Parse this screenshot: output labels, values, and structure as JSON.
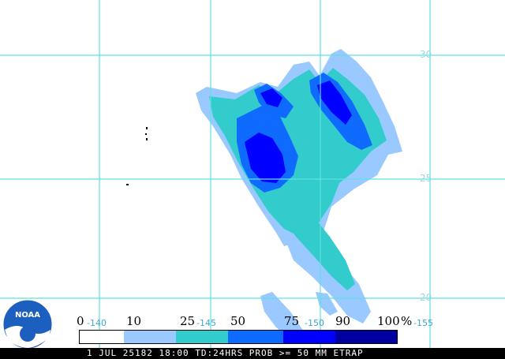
{
  "colors": {
    "grid": "#5fe0e0",
    "c0": "#ffffff",
    "c10": "#99c9ff",
    "c25": "#33cccc",
    "c50": "#0f6bff",
    "c75": "#0000ff",
    "c90": "#0a0ad8",
    "c100": "#0000a0",
    "lon_label": "#3aa7d6"
  },
  "grid": {
    "lat_labels": [
      "30",
      "25",
      "20"
    ]
  },
  "legend": {
    "values": [
      "0",
      "10",
      "25",
      "50",
      "75",
      "90",
      "100"
    ],
    "percent": "%",
    "lon_labels": [
      "-140",
      "-145",
      "-150",
      "-155"
    ]
  },
  "logo": {
    "text": "NOAA"
  },
  "footer": {
    "text": "1 JUL 25182 18:00 TD:24HRS PROB >= 50 MM ETRAP"
  }
}
